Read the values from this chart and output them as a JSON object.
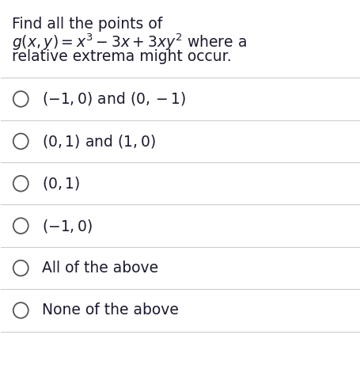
{
  "background_color": "#ffffff",
  "text_color": "#1a1a2e",
  "question_line1": "Find all the points of",
  "question_line2": "$g(x, y) = x^3 - 3x + 3xy^2$ where a",
  "question_line3": "relative extrema might occur.",
  "options": [
    "$(-1, 0)$ and $(0, -1)$",
    "$(0, 1)$ and $(1, 0)$",
    "$(0, 1)$",
    "$(-1, 0)$",
    "All of the above",
    "None of the above"
  ],
  "figsize": [
    4.55,
    4.71
  ],
  "dpi": 100,
  "divider_color": "#cccccc",
  "circle_color": "#555555",
  "question_fontsize": 13.5,
  "option_fontsize": 13.5
}
